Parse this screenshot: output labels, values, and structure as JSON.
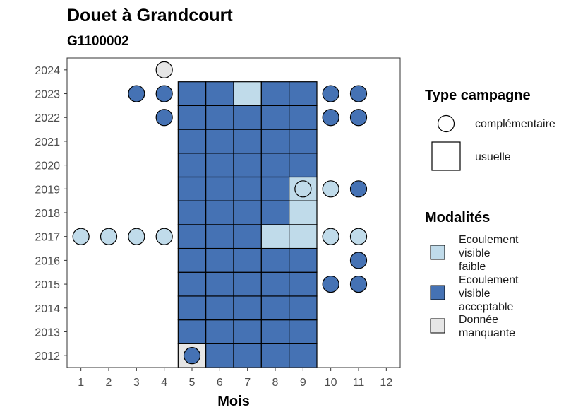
{
  "chart_data": {
    "type": "heatmap",
    "title": "Douet à Grandcourt",
    "subtitle": "G1100002",
    "xlabel": "Mois",
    "ylabel": "",
    "x_ticks": [
      "1",
      "2",
      "3",
      "4",
      "5",
      "6",
      "7",
      "8",
      "9",
      "10",
      "11",
      "12"
    ],
    "y_ticks": [
      "2012",
      "2013",
      "2014",
      "2015",
      "2016",
      "2017",
      "2018",
      "2019",
      "2020",
      "2021",
      "2022",
      "2023",
      "2024"
    ],
    "xlim": [
      0.5,
      12.5
    ],
    "ylim": [
      2011.5,
      2024.5
    ],
    "grid": false,
    "legend_position": "right",
    "colors": {
      "ecoulement_faible": "#c0dbea",
      "ecoulement_acceptable": "#4572b4",
      "donnee_manquante": "#e6e6e6"
    },
    "legends": {
      "type": {
        "title": "Type campagne",
        "items": [
          {
            "label": "complémentaire",
            "shape": "circle"
          },
          {
            "label": "usuelle",
            "shape": "square"
          }
        ]
      },
      "modalites": {
        "title": "Modalités",
        "items": [
          {
            "label_lines": [
              "Ecoulement",
              "visible",
              "faible"
            ],
            "key": "ecoulement_faible"
          },
          {
            "label_lines": [
              "Ecoulement",
              "visible",
              "acceptable"
            ],
            "key": "ecoulement_acceptable"
          },
          {
            "label_lines": [
              "Donnée",
              "manquante"
            ],
            "key": "donnee_manquante"
          }
        ]
      }
    },
    "usuelle": [
      {
        "year": 2012,
        "month": 5,
        "value": "donnee_manquante"
      },
      {
        "year": 2012,
        "month": 6,
        "value": "ecoulement_acceptable"
      },
      {
        "year": 2012,
        "month": 7,
        "value": "ecoulement_acceptable"
      },
      {
        "year": 2012,
        "month": 8,
        "value": "ecoulement_acceptable"
      },
      {
        "year": 2012,
        "month": 9,
        "value": "ecoulement_acceptable"
      },
      {
        "year": 2013,
        "month": 5,
        "value": "ecoulement_acceptable"
      },
      {
        "year": 2013,
        "month": 6,
        "value": "ecoulement_acceptable"
      },
      {
        "year": 2013,
        "month": 7,
        "value": "ecoulement_acceptable"
      },
      {
        "year": 2013,
        "month": 8,
        "value": "ecoulement_acceptable"
      },
      {
        "year": 2013,
        "month": 9,
        "value": "ecoulement_acceptable"
      },
      {
        "year": 2014,
        "month": 5,
        "value": "ecoulement_acceptable"
      },
      {
        "year": 2014,
        "month": 6,
        "value": "ecoulement_acceptable"
      },
      {
        "year": 2014,
        "month": 7,
        "value": "ecoulement_acceptable"
      },
      {
        "year": 2014,
        "month": 8,
        "value": "ecoulement_acceptable"
      },
      {
        "year": 2014,
        "month": 9,
        "value": "ecoulement_acceptable"
      },
      {
        "year": 2015,
        "month": 5,
        "value": "ecoulement_acceptable"
      },
      {
        "year": 2015,
        "month": 6,
        "value": "ecoulement_acceptable"
      },
      {
        "year": 2015,
        "month": 7,
        "value": "ecoulement_acceptable"
      },
      {
        "year": 2015,
        "month": 8,
        "value": "ecoulement_acceptable"
      },
      {
        "year": 2015,
        "month": 9,
        "value": "ecoulement_acceptable"
      },
      {
        "year": 2016,
        "month": 5,
        "value": "ecoulement_acceptable"
      },
      {
        "year": 2016,
        "month": 6,
        "value": "ecoulement_acceptable"
      },
      {
        "year": 2016,
        "month": 7,
        "value": "ecoulement_acceptable"
      },
      {
        "year": 2016,
        "month": 8,
        "value": "ecoulement_acceptable"
      },
      {
        "year": 2016,
        "month": 9,
        "value": "ecoulement_acceptable"
      },
      {
        "year": 2017,
        "month": 5,
        "value": "ecoulement_acceptable"
      },
      {
        "year": 2017,
        "month": 6,
        "value": "ecoulement_acceptable"
      },
      {
        "year": 2017,
        "month": 7,
        "value": "ecoulement_acceptable"
      },
      {
        "year": 2017,
        "month": 8,
        "value": "ecoulement_faible"
      },
      {
        "year": 2017,
        "month": 9,
        "value": "ecoulement_faible"
      },
      {
        "year": 2018,
        "month": 5,
        "value": "ecoulement_acceptable"
      },
      {
        "year": 2018,
        "month": 6,
        "value": "ecoulement_acceptable"
      },
      {
        "year": 2018,
        "month": 7,
        "value": "ecoulement_acceptable"
      },
      {
        "year": 2018,
        "month": 8,
        "value": "ecoulement_acceptable"
      },
      {
        "year": 2018,
        "month": 9,
        "value": "ecoulement_faible"
      },
      {
        "year": 2019,
        "month": 5,
        "value": "ecoulement_acceptable"
      },
      {
        "year": 2019,
        "month": 6,
        "value": "ecoulement_acceptable"
      },
      {
        "year": 2019,
        "month": 7,
        "value": "ecoulement_acceptable"
      },
      {
        "year": 2019,
        "month": 8,
        "value": "ecoulement_acceptable"
      },
      {
        "year": 2019,
        "month": 9,
        "value": "ecoulement_faible"
      },
      {
        "year": 2020,
        "month": 5,
        "value": "ecoulement_acceptable"
      },
      {
        "year": 2020,
        "month": 6,
        "value": "ecoulement_acceptable"
      },
      {
        "year": 2020,
        "month": 7,
        "value": "ecoulement_acceptable"
      },
      {
        "year": 2020,
        "month": 8,
        "value": "ecoulement_acceptable"
      },
      {
        "year": 2020,
        "month": 9,
        "value": "ecoulement_acceptable"
      },
      {
        "year": 2021,
        "month": 5,
        "value": "ecoulement_acceptable"
      },
      {
        "year": 2021,
        "month": 6,
        "value": "ecoulement_acceptable"
      },
      {
        "year": 2021,
        "month": 7,
        "value": "ecoulement_acceptable"
      },
      {
        "year": 2021,
        "month": 8,
        "value": "ecoulement_acceptable"
      },
      {
        "year": 2021,
        "month": 9,
        "value": "ecoulement_acceptable"
      },
      {
        "year": 2022,
        "month": 5,
        "value": "ecoulement_acceptable"
      },
      {
        "year": 2022,
        "month": 6,
        "value": "ecoulement_acceptable"
      },
      {
        "year": 2022,
        "month": 7,
        "value": "ecoulement_acceptable"
      },
      {
        "year": 2022,
        "month": 8,
        "value": "ecoulement_acceptable"
      },
      {
        "year": 2022,
        "month": 9,
        "value": "ecoulement_acceptable"
      },
      {
        "year": 2023,
        "month": 5,
        "value": "ecoulement_acceptable"
      },
      {
        "year": 2023,
        "month": 6,
        "value": "ecoulement_acceptable"
      },
      {
        "year": 2023,
        "month": 7,
        "value": "ecoulement_faible"
      },
      {
        "year": 2023,
        "month": 8,
        "value": "ecoulement_acceptable"
      },
      {
        "year": 2023,
        "month": 9,
        "value": "ecoulement_acceptable"
      }
    ],
    "complementaire": [
      {
        "year": 2012,
        "month": 5,
        "value": "ecoulement_acceptable"
      },
      {
        "year": 2015,
        "month": 10,
        "value": "ecoulement_acceptable"
      },
      {
        "year": 2015,
        "month": 11,
        "value": "ecoulement_acceptable"
      },
      {
        "year": 2016,
        "month": 11,
        "value": "ecoulement_acceptable"
      },
      {
        "year": 2017,
        "month": 1,
        "value": "ecoulement_faible"
      },
      {
        "year": 2017,
        "month": 2,
        "value": "ecoulement_faible"
      },
      {
        "year": 2017,
        "month": 3,
        "value": "ecoulement_faible"
      },
      {
        "year": 2017,
        "month": 4,
        "value": "ecoulement_faible"
      },
      {
        "year": 2017,
        "month": 10,
        "value": "ecoulement_faible"
      },
      {
        "year": 2017,
        "month": 11,
        "value": "ecoulement_faible"
      },
      {
        "year": 2019,
        "month": 9,
        "value": "ecoulement_faible"
      },
      {
        "year": 2019,
        "month": 10,
        "value": "ecoulement_faible"
      },
      {
        "year": 2019,
        "month": 11,
        "value": "ecoulement_acceptable"
      },
      {
        "year": 2022,
        "month": 4,
        "value": "ecoulement_acceptable"
      },
      {
        "year": 2022,
        "month": 10,
        "value": "ecoulement_acceptable"
      },
      {
        "year": 2022,
        "month": 11,
        "value": "ecoulement_acceptable"
      },
      {
        "year": 2023,
        "month": 3,
        "value": "ecoulement_acceptable"
      },
      {
        "year": 2023,
        "month": 4,
        "value": "ecoulement_acceptable"
      },
      {
        "year": 2023,
        "month": 10,
        "value": "ecoulement_acceptable"
      },
      {
        "year": 2023,
        "month": 11,
        "value": "ecoulement_acceptable"
      },
      {
        "year": 2024,
        "month": 4,
        "value": "donnee_manquante"
      }
    ]
  }
}
